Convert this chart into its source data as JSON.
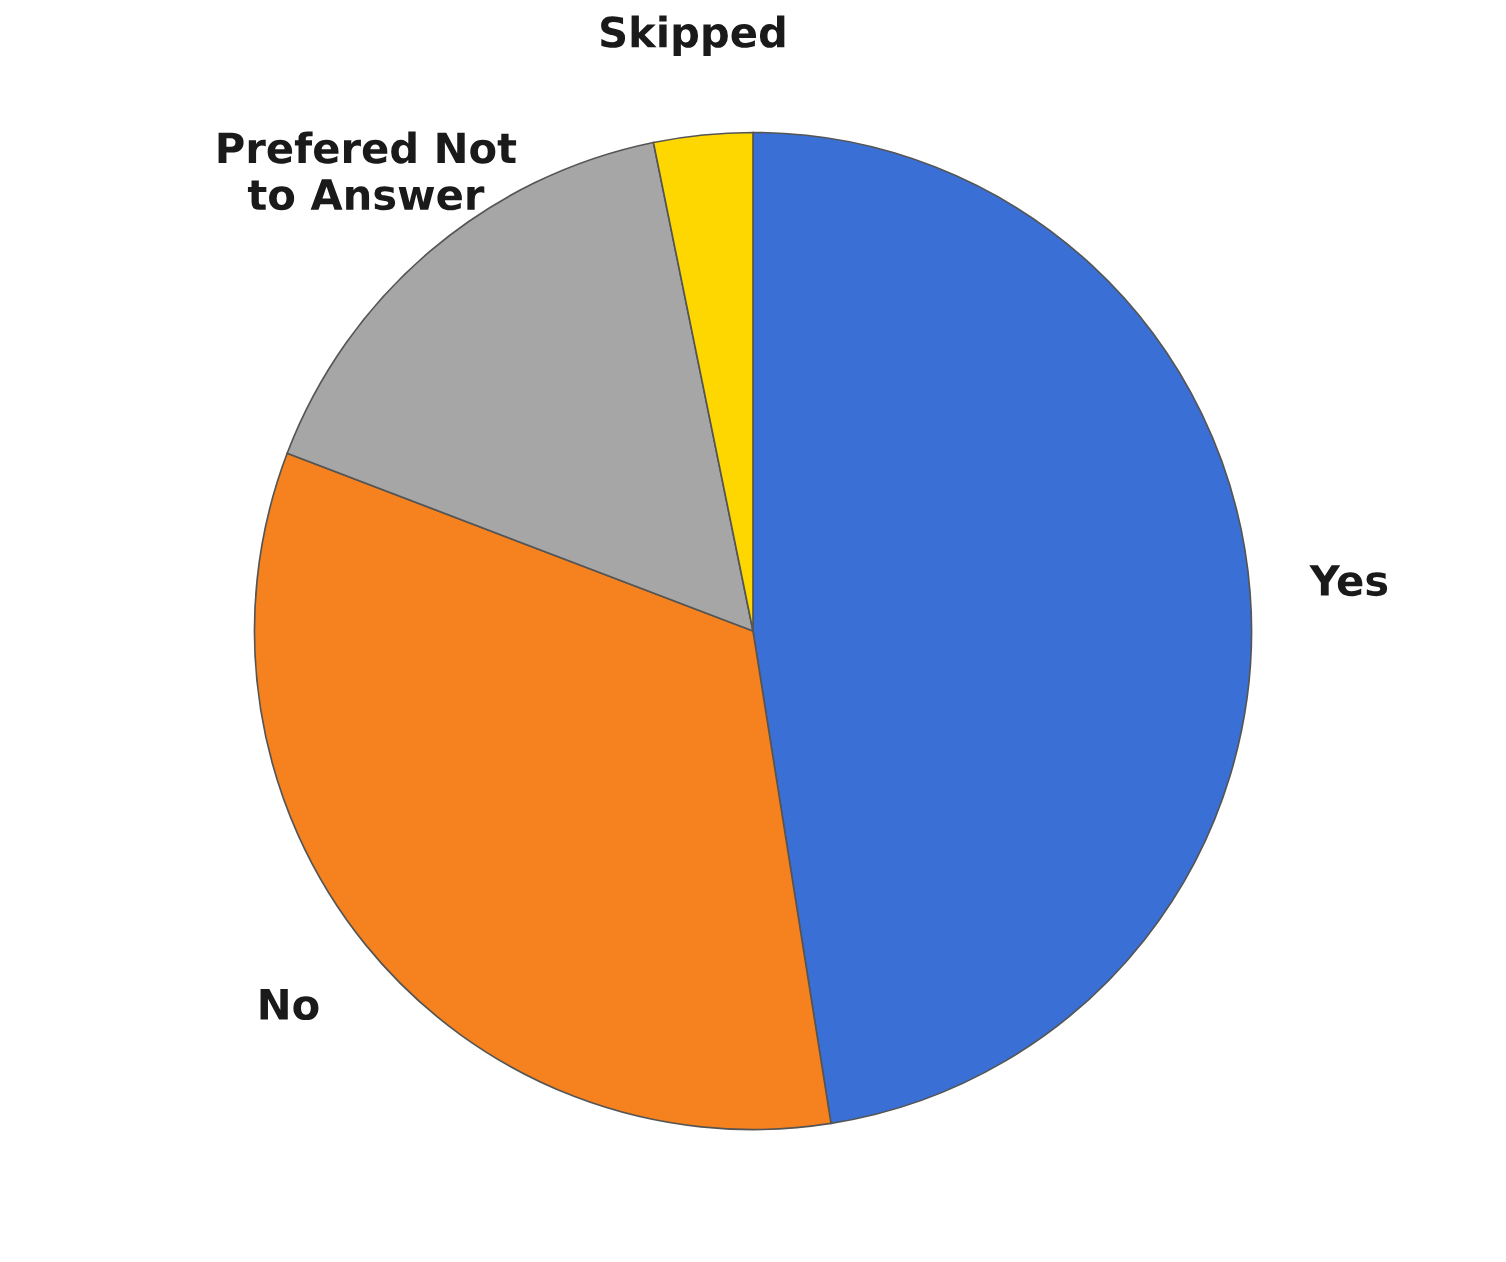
{
  "chart_data": {
    "type": "pie",
    "categories": [
      "Yes",
      "No",
      "Prefered Not\nto Answer",
      "Skipped"
    ],
    "values": [
      47.5,
      33.3,
      16,
      3.2
    ],
    "colors": [
      "#3a70d6",
      "#f5821f",
      "#a6a6a6",
      "#ffd700"
    ]
  }
}
